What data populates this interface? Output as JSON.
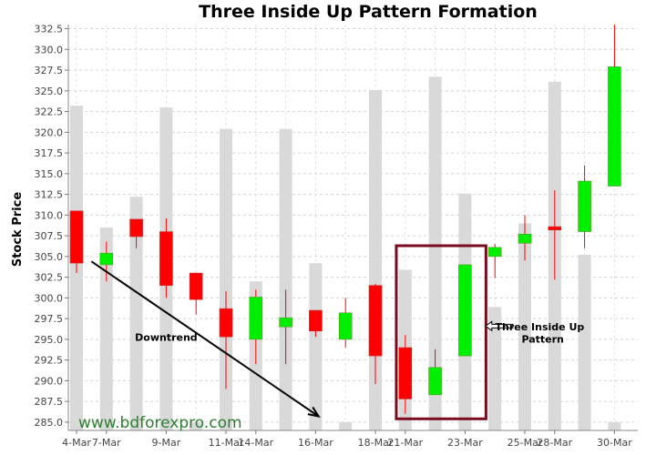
{
  "chart_data": {
    "type": "candlestick",
    "title": "Three Inside Up Pattern Formation",
    "ylabel": "Stock Price",
    "xlabel": "",
    "ylim": [
      284,
      333
    ],
    "y_ticks": [
      "285.0",
      "287.5",
      "290.0",
      "292.5",
      "295.0",
      "297.5",
      "300.0",
      "302.5",
      "305.0",
      "307.5",
      "310.0",
      "312.5",
      "315.0",
      "317.5",
      "320.0",
      "322.5",
      "325.0",
      "327.5",
      "330.0",
      "332.5"
    ],
    "grid": true,
    "x_tick_labels": [
      "4-Mar",
      "7-Mar",
      "9-Mar",
      "11-Mar",
      "14-Mar",
      "16-Mar",
      "18-Mar",
      "21-Mar",
      "23-Mar",
      "25-Mar",
      "28-Mar",
      "30-Mar"
    ],
    "colors": {
      "up": "#00ee00",
      "down": "#ff0000",
      "volume": "#d9d9d9",
      "wick": "#ff0000",
      "highlight": "#7a0a1e",
      "arrow": "#000000",
      "watermark": "#2e7d32"
    },
    "candles": [
      {
        "open": 310.5,
        "high": 310.5,
        "low": 303.0,
        "close": 304.2,
        "volume": 323.2
      },
      {
        "open": 304.0,
        "high": 306.8,
        "low": 302.0,
        "close": 305.4,
        "volume": 308.5
      },
      {
        "open": 309.5,
        "high": 309.5,
        "low": 306.0,
        "close": 307.4,
        "volume": 312.2
      },
      {
        "open": 308.0,
        "high": 309.6,
        "low": 300.0,
        "close": 301.5,
        "volume": 323.0
      },
      {
        "open": 303.0,
        "high": 303.0,
        "low": 298.0,
        "close": 299.8,
        "volume": 285.0
      },
      {
        "open": 298.7,
        "high": 300.8,
        "low": 289.0,
        "close": 295.3,
        "volume": 320.4
      },
      {
        "open": 295.0,
        "high": 301.0,
        "low": 292.0,
        "close": 300.1,
        "volume": 302.0
      },
      {
        "open": 296.5,
        "high": 301.0,
        "low": 292.0,
        "close": 297.6,
        "volume": 320.4
      },
      {
        "open": 298.5,
        "high": 298.5,
        "low": 295.3,
        "close": 296.0,
        "volume": 304.2
      },
      {
        "open": 295.0,
        "high": 300.0,
        "low": 294.0,
        "close": 298.2,
        "volume": 285.0
      },
      {
        "open": 301.5,
        "high": 301.7,
        "low": 289.6,
        "close": 293.0,
        "volume": 325.1
      },
      {
        "open": 294.0,
        "high": 295.5,
        "low": 286.0,
        "close": 287.8,
        "volume": 303.4
      },
      {
        "open": 288.3,
        "high": 293.8,
        "low": 288.3,
        "close": 291.6,
        "volume": 326.7
      },
      {
        "open": 293.0,
        "high": 304.0,
        "low": 293.0,
        "close": 304.0,
        "volume": 312.6
      },
      {
        "open": 305.0,
        "high": 306.5,
        "low": 302.4,
        "close": 306.1,
        "volume": 298.9
      },
      {
        "open": 306.6,
        "high": 310.0,
        "low": 304.5,
        "close": 307.7,
        "volume": 309.0
      },
      {
        "open": 308.6,
        "high": 313.0,
        "low": 302.2,
        "close": 308.2,
        "volume": 326.1
      },
      {
        "open": 308.0,
        "high": 316.0,
        "low": 306.0,
        "close": 314.1,
        "volume": 305.2
      },
      {
        "open": 313.5,
        "high": 333.0,
        "low": 313.5,
        "close": 327.9,
        "volume": 285.0
      }
    ],
    "annotations": [
      {
        "text": "Downtrend",
        "x_index": 3.0,
        "y": 294.8
      },
      {
        "text": "Three Inside Up",
        "x_index": 15.5,
        "y": 296.1
      },
      {
        "text": "Pattern",
        "x_index": 15.6,
        "y": 294.6
      }
    ],
    "downtrend_arrow": {
      "from": [
        0.5,
        304.4
      ],
      "to": [
        8.1,
        285.7
      ]
    },
    "pattern_arrow": {
      "from": [
        14.6,
        296.6
      ],
      "to": [
        13.5,
        296.6
      ]
    },
    "highlight_box": {
      "x_start": 10.7,
      "x_end": 13.7,
      "y_low": 285.4,
      "y_high": 306.3
    }
  },
  "watermark": "www.bdforexpro.com"
}
